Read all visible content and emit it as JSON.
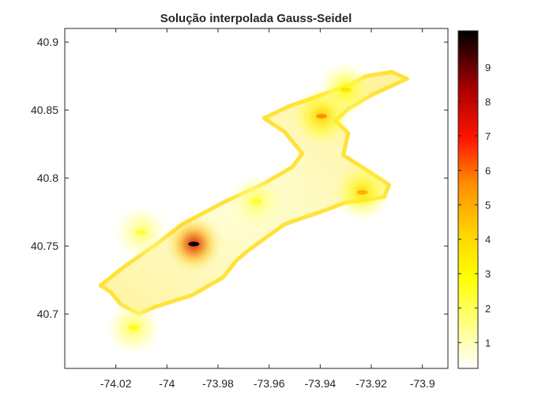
{
  "chart_data": {
    "type": "heatmap",
    "title": "Solução interpolada Gauss-Seidel",
    "xlabel": "",
    "ylabel": "",
    "xlim": [
      -74.04,
      -73.89
    ],
    "ylim": [
      40.66,
      40.91
    ],
    "x_ticks": [
      -74.02,
      -74.0,
      -73.98,
      -73.96,
      -73.94,
      -73.92,
      -73.9
    ],
    "x_tick_labels": [
      "-74.02",
      "-74",
      "-73.98",
      "-73.96",
      "-73.94",
      "-73.92",
      "-73.9"
    ],
    "y_ticks": [
      40.7,
      40.75,
      40.8,
      40.85,
      40.9
    ],
    "y_tick_labels": [
      "40.7",
      "40.75",
      "40.8",
      "40.85",
      "40.9"
    ],
    "colormap": "hot (reversed)",
    "colorbar": {
      "range": [
        0.25,
        10.05
      ],
      "ticks": [
        1,
        2,
        3,
        4,
        5,
        6,
        7,
        8,
        9
      ],
      "tick_labels": [
        "1",
        "2",
        "3",
        "4",
        "5",
        "6",
        "7",
        "8",
        "9"
      ]
    },
    "grid": false,
    "legend": "none",
    "region_outline": [
      [
        -74.026,
        40.721
      ],
      [
        -74.018,
        40.733
      ],
      [
        -74.003,
        40.753
      ],
      [
        -73.994,
        40.766
      ],
      [
        -73.978,
        40.782
      ],
      [
        -73.962,
        40.796
      ],
      [
        -73.951,
        40.808
      ],
      [
        -73.947,
        40.818
      ],
      [
        -73.954,
        40.834
      ],
      [
        -73.962,
        40.844
      ],
      [
        -73.952,
        40.853
      ],
      [
        -73.944,
        40.858
      ],
      [
        -73.928,
        40.869
      ],
      [
        -73.922,
        40.875
      ],
      [
        -73.912,
        40.878
      ],
      [
        -73.906,
        40.873
      ],
      [
        -73.92,
        40.861
      ],
      [
        -73.929,
        40.851
      ],
      [
        -73.934,
        40.842
      ],
      [
        -73.929,
        40.833
      ],
      [
        -73.931,
        40.817
      ],
      [
        -73.922,
        40.806
      ],
      [
        -73.913,
        40.795
      ],
      [
        -73.915,
        40.786
      ],
      [
        -73.93,
        40.782
      ],
      [
        -73.94,
        40.775
      ],
      [
        -73.954,
        40.766
      ],
      [
        -73.968,
        40.747
      ],
      [
        -73.973,
        40.739
      ],
      [
        -73.978,
        40.727
      ],
      [
        -73.99,
        40.714
      ],
      [
        -74.005,
        40.705
      ],
      [
        -74.011,
        40.7
      ],
      [
        -74.018,
        40.707
      ],
      [
        -74.022,
        40.716
      ]
    ],
    "hotspots": [
      {
        "x": -73.9895,
        "y": 40.7515,
        "value": 10.0
      },
      {
        "x": -73.9395,
        "y": 40.8455,
        "value": 5.5
      },
      {
        "x": -73.9235,
        "y": 40.7895,
        "value": 4.8
      },
      {
        "x": -73.93,
        "y": 40.865,
        "value": 3.5
      },
      {
        "x": -74.013,
        "y": 40.69,
        "value": 2.6
      },
      {
        "x": -73.965,
        "y": 40.783,
        "value": 2.4
      },
      {
        "x": -74.01,
        "y": 40.76,
        "value": 2.2
      }
    ]
  }
}
